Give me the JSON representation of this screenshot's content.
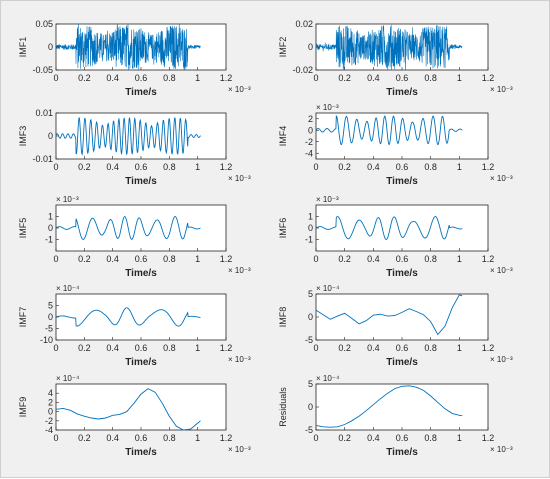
{
  "chart_data": [
    {
      "type": "line",
      "ylabel": "IMF1",
      "xlabel": "Time/s",
      "x_exponent": "× 10⁻³",
      "y_exponent": "",
      "ylim": [
        -0.05,
        0.05
      ],
      "yticks": [
        -0.05,
        0,
        0.05
      ],
      "ytick_labels": [
        "-0.05",
        "0",
        "0.05"
      ],
      "xlim": [
        0,
        1.2
      ],
      "xticks": [
        0,
        0.2,
        0.4,
        0.6,
        0.8,
        1,
        1.2
      ],
      "xtick_labels": [
        "0",
        "0.2",
        "0.4",
        "0.6",
        "0.8",
        "1",
        "1.2"
      ],
      "series": [
        {
          "kind": "dense",
          "amp": 0.05,
          "x_range": [
            0,
            1.02
          ]
        }
      ]
    },
    {
      "type": "line",
      "ylabel": "IMF2",
      "xlabel": "Time/s",
      "x_exponent": "× 10⁻³",
      "y_exponent": "",
      "ylim": [
        -0.02,
        0.02
      ],
      "yticks": [
        -0.02,
        0,
        0.02
      ],
      "ytick_labels": [
        "-0.02",
        "0",
        "0.02"
      ],
      "xlim": [
        0,
        1.2
      ],
      "xticks": [
        0,
        0.2,
        0.4,
        0.6,
        0.8,
        1,
        1.2
      ],
      "xtick_labels": [
        "0",
        "0.2",
        "0.4",
        "0.6",
        "0.8",
        "1",
        "1.2"
      ],
      "series": [
        {
          "kind": "dense",
          "amp": 0.02,
          "x_range": [
            0,
            1.02
          ]
        }
      ]
    },
    {
      "type": "line",
      "ylabel": "IMF3",
      "xlabel": "Time/s",
      "x_exponent": "× 10⁻³",
      "y_exponent": "",
      "ylim": [
        -0.01,
        0.01
      ],
      "yticks": [
        -0.01,
        0,
        0.01
      ],
      "ytick_labels": [
        "-0.01",
        "0",
        "0.01"
      ],
      "xlim": [
        0,
        1.2
      ],
      "xticks": [
        0,
        0.2,
        0.4,
        0.6,
        0.8,
        1,
        1.2
      ],
      "xtick_labels": [
        "0",
        "0.2",
        "0.4",
        "0.6",
        "0.8",
        "1",
        "1.2"
      ],
      "series": [
        {
          "kind": "oscillation",
          "amp": 0.008,
          "x_range": [
            0,
            1.02
          ]
        }
      ]
    },
    {
      "type": "line",
      "ylabel": "IMF4",
      "xlabel": "Time/s",
      "x_exponent": "× 10⁻³",
      "y_exponent": "× 10⁻³",
      "ylim": [
        -5,
        3
      ],
      "yticks": [
        -4,
        -2,
        0,
        2
      ],
      "ytick_labels": [
        "-4",
        "-2",
        "0",
        "2"
      ],
      "xlim": [
        0,
        1.2
      ],
      "xticks": [
        0,
        0.2,
        0.4,
        0.6,
        0.8,
        1,
        1.2
      ],
      "xtick_labels": [
        "0",
        "0.2",
        "0.4",
        "0.6",
        "0.8",
        "1",
        "1.2"
      ],
      "series": [
        {
          "kind": "oscillation",
          "amp": 2.5,
          "x_range": [
            0,
            1.02
          ]
        }
      ]
    },
    {
      "type": "line",
      "ylabel": "IMF5",
      "xlabel": "Time/s",
      "x_exponent": "× 10⁻³",
      "y_exponent": "× 10⁻³",
      "ylim": [
        -2,
        2
      ],
      "yticks": [
        -1,
        0,
        1
      ],
      "ytick_labels": [
        "-1",
        "0",
        "1"
      ],
      "xlim": [
        0,
        1.2
      ],
      "xticks": [
        0,
        0.2,
        0.4,
        0.6,
        0.8,
        1,
        1.2
      ],
      "xtick_labels": [
        "0",
        "0.2",
        "0.4",
        "0.6",
        "0.8",
        "1",
        "1.2"
      ],
      "series": [
        {
          "kind": "oscillation",
          "amp": 1,
          "x_range": [
            0,
            1.02
          ]
        }
      ]
    },
    {
      "type": "line",
      "ylabel": "IMF6",
      "xlabel": "Time/s",
      "x_exponent": "× 10⁻³",
      "y_exponent": "× 10⁻³",
      "ylim": [
        -2,
        2
      ],
      "yticks": [
        -1,
        0,
        1
      ],
      "ytick_labels": [
        "-1",
        "0",
        "1"
      ],
      "xlim": [
        0,
        1.2
      ],
      "xticks": [
        0,
        0.2,
        0.4,
        0.6,
        0.8,
        1,
        1.2
      ],
      "xtick_labels": [
        "0",
        "0.2",
        "0.4",
        "0.6",
        "0.8",
        "1",
        "1.2"
      ],
      "series": [
        {
          "kind": "oscillation",
          "amp": 1,
          "x_range": [
            0,
            1.02
          ]
        }
      ]
    },
    {
      "type": "line",
      "ylabel": "IMF7",
      "xlabel": "Time/s",
      "x_exponent": "× 10⁻³",
      "y_exponent": "× 10⁻⁴",
      "ylim": [
        -10,
        10
      ],
      "yticks": [
        -10,
        -5,
        0,
        5
      ],
      "ytick_labels": [
        "-10",
        "-5",
        "0",
        "5"
      ],
      "xlim": [
        0,
        1.2
      ],
      "xticks": [
        0,
        0.2,
        0.4,
        0.6,
        0.8,
        1,
        1.2
      ],
      "xtick_labels": [
        "0",
        "0.2",
        "0.4",
        "0.6",
        "0.8",
        "1",
        "1.2"
      ],
      "series": [
        {
          "kind": "oscillation",
          "amp": 4,
          "x_range": [
            0,
            1.02
          ]
        }
      ]
    },
    {
      "type": "line",
      "ylabel": "IMF8",
      "xlabel": "Time/s",
      "x_exponent": "× 10⁻³",
      "y_exponent": "× 10⁻⁴",
      "ylim": [
        -5,
        5
      ],
      "yticks": [
        -5,
        0,
        5
      ],
      "ytick_labels": [
        "-5",
        "0",
        "5"
      ],
      "xlim": [
        0,
        1.2
      ],
      "xticks": [
        0,
        0.2,
        0.4,
        0.6,
        0.8,
        1,
        1.2
      ],
      "xtick_labels": [
        "0",
        "0.2",
        "0.4",
        "0.6",
        "0.8",
        "1",
        "1.2"
      ],
      "series": [
        {
          "kind": "points",
          "x": [
            0,
            0.05,
            0.1,
            0.15,
            0.2,
            0.25,
            0.3,
            0.35,
            0.4,
            0.45,
            0.5,
            0.55,
            0.6,
            0.65,
            0.7,
            0.75,
            0.8,
            0.85,
            0.9,
            0.95,
            1.0,
            1.02
          ],
          "y": [
            1.5,
            0.5,
            -0.5,
            0.2,
            0.8,
            -0.3,
            -1.5,
            -0.8,
            0.4,
            0.6,
            0.2,
            0.3,
            1.0,
            1.8,
            1.2,
            0.5,
            -1.0,
            -3.8,
            -2.0,
            2.0,
            4.8,
            4.6
          ]
        }
      ]
    },
    {
      "type": "line",
      "ylabel": "IMF9",
      "xlabel": "Time/s",
      "x_exponent": "× 10⁻³",
      "y_exponent": "× 10⁻⁴",
      "ylim": [
        -4,
        6
      ],
      "yticks": [
        -4,
        -2,
        0,
        2,
        4
      ],
      "ytick_labels": [
        "-4",
        "-2",
        "0",
        "2",
        "4"
      ],
      "xlim": [
        0,
        1.2
      ],
      "xticks": [
        0,
        0.2,
        0.4,
        0.6,
        0.8,
        1,
        1.2
      ],
      "xtick_labels": [
        "0",
        "0.2",
        "0.4",
        "0.6",
        "0.8",
        "1",
        "1.2"
      ],
      "series": [
        {
          "kind": "points",
          "x": [
            0,
            0.05,
            0.1,
            0.15,
            0.2,
            0.25,
            0.3,
            0.35,
            0.4,
            0.45,
            0.5,
            0.55,
            0.6,
            0.65,
            0.7,
            0.75,
            0.8,
            0.85,
            0.9,
            0.95,
            1.0,
            1.02
          ],
          "y": [
            0.5,
            0.7,
            0.3,
            -0.5,
            -1.0,
            -1.4,
            -1.6,
            -1.4,
            -0.8,
            -0.6,
            0.0,
            1.8,
            3.8,
            5.0,
            4.2,
            1.8,
            -1.0,
            -3.2,
            -4.0,
            -3.8,
            -2.5,
            -2.0
          ]
        }
      ]
    },
    {
      "type": "line",
      "ylabel": "Residuals",
      "xlabel": "Time/s",
      "x_exponent": "× 10⁻³",
      "y_exponent": "× 10⁻⁴",
      "ylim": [
        -5,
        5
      ],
      "yticks": [
        -5,
        0,
        5
      ],
      "ytick_labels": [
        "-5",
        "0",
        "5"
      ],
      "xlim": [
        0,
        1.2
      ],
      "xticks": [
        0,
        0.2,
        0.4,
        0.6,
        0.8,
        1,
        1.2
      ],
      "xtick_labels": [
        "0",
        "0.2",
        "0.4",
        "0.6",
        "0.8",
        "1",
        "1.2"
      ],
      "series": [
        {
          "kind": "points",
          "x": [
            0,
            0.05,
            0.1,
            0.15,
            0.2,
            0.25,
            0.3,
            0.35,
            0.4,
            0.45,
            0.5,
            0.55,
            0.6,
            0.65,
            0.7,
            0.75,
            0.8,
            0.85,
            0.9,
            0.95,
            1.0,
            1.02
          ],
          "y": [
            -4.0,
            -4.3,
            -4.4,
            -4.3,
            -3.8,
            -3.0,
            -2.0,
            -0.8,
            0.5,
            1.8,
            3.0,
            4.0,
            4.5,
            4.6,
            4.3,
            3.6,
            2.4,
            1.0,
            -0.4,
            -1.4,
            -1.8,
            -1.9
          ]
        }
      ]
    }
  ],
  "colors": {
    "line": "#0072BD",
    "axes_bg": "#ffffff",
    "axis": "#262626",
    "figure_bg": "#f0f0f0"
  }
}
